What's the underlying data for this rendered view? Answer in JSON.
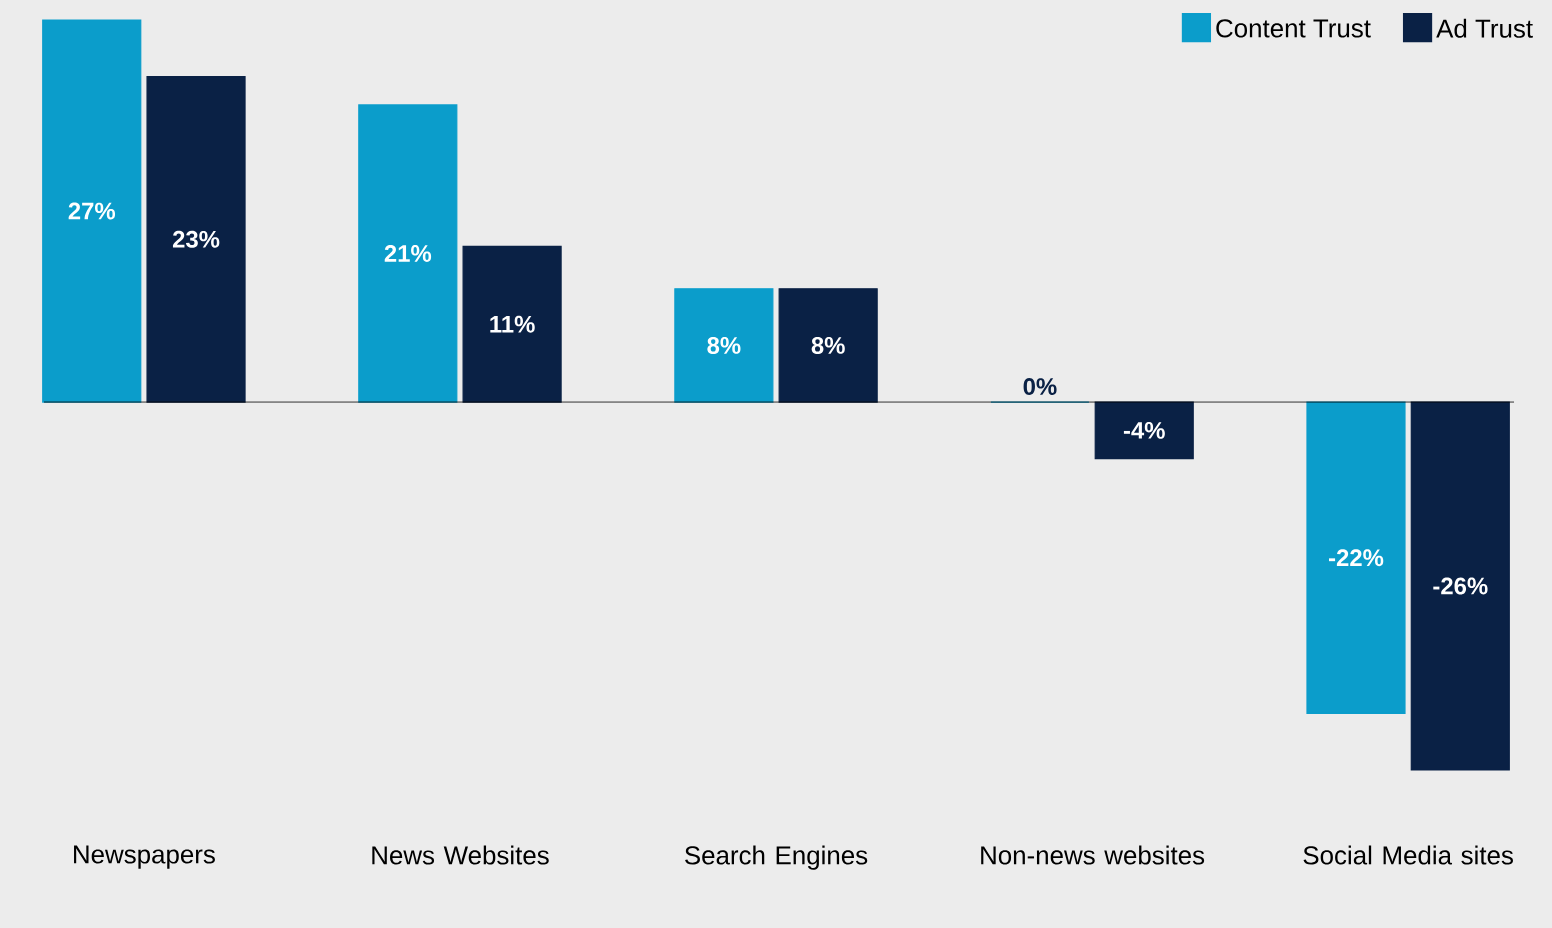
{
  "chart_data": {
    "type": "bar",
    "categories": [
      "Newspapers",
      "News Websites",
      "Search Engines",
      "Non-news websites",
      "Social Media sites"
    ],
    "series": [
      {
        "name": "Content Trust",
        "color": "#0b9dcb",
        "values": [
          27,
          21,
          8,
          0,
          -22
        ],
        "value_labels": [
          "27%",
          "21%",
          "8%",
          "0%",
          "-22%"
        ]
      },
      {
        "name": "Ad Trust",
        "color": "#0a2145",
        "values": [
          23,
          11,
          8,
          -4,
          -26
        ],
        "value_labels": [
          "23%",
          "11%",
          "8%",
          "-4%",
          "-26%"
        ]
      }
    ],
    "legend": "top right"
  }
}
